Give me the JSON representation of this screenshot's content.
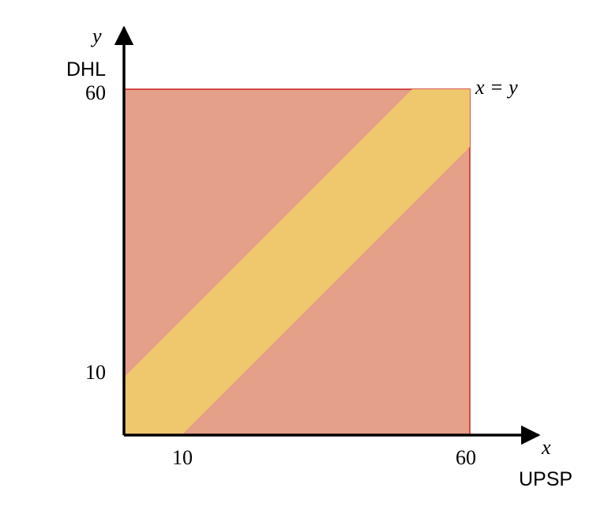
{
  "diagram": {
    "x_axis": {
      "symbol": "x",
      "label": "UPSP",
      "min": 0,
      "max": 60,
      "ticks": [
        "10",
        "60"
      ]
    },
    "y_axis": {
      "symbol": "y",
      "label": "DHL",
      "min": 0,
      "max": 60,
      "ticks": [
        "10",
        "60"
      ]
    },
    "band": {
      "description": "|x - y| <= 10",
      "half_width": 10
    },
    "line_label": "x = y",
    "colors": {
      "square_fill": "#e4a088",
      "square_stroke": "#c8201c",
      "band_fill": "#efc76c",
      "axis": "#000000"
    }
  }
}
